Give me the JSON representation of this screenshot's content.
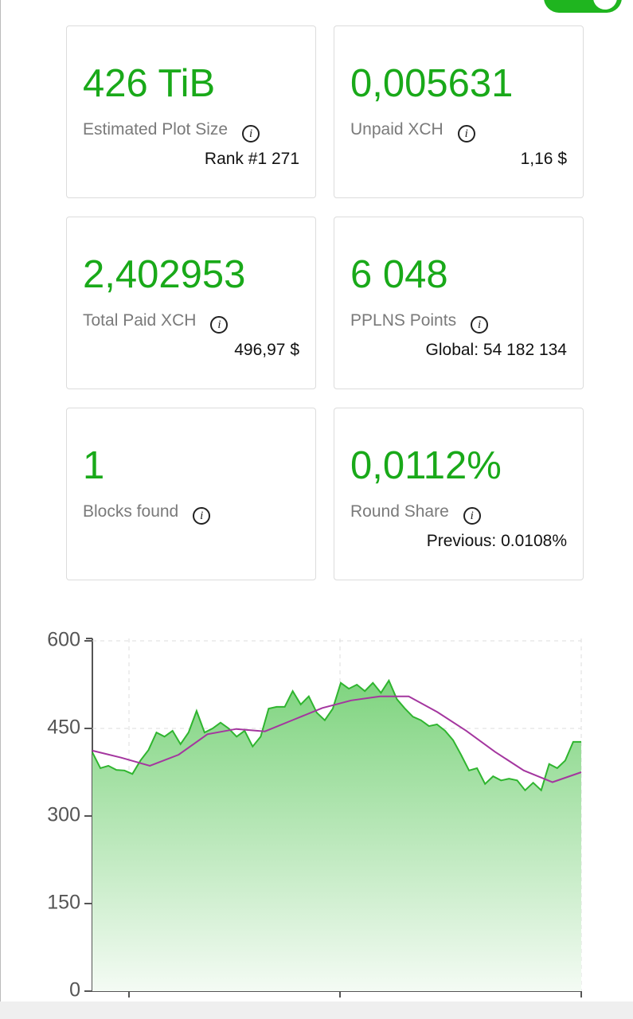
{
  "cards": [
    {
      "value": "426 TiB",
      "label": "Estimated Plot Size",
      "sub": "Rank #1 271"
    },
    {
      "value": "0,005631",
      "label": "Unpaid XCH",
      "sub": "1,16 $"
    },
    {
      "value": "2,402953",
      "label": "Total Paid XCH",
      "sub": "496,97 $"
    },
    {
      "value": "6 048",
      "label": "PPLNS Points",
      "sub": "Global: 54 182 134"
    },
    {
      "value": "1",
      "label": "Blocks found"
    },
    {
      "value": "0,0112%",
      "label": "Round Share",
      "sub": "Previous: 0.0108%"
    }
  ],
  "chart_data": {
    "type": "line",
    "ylim": [
      0,
      600
    ],
    "yticks": [
      0,
      150,
      300,
      450,
      600
    ],
    "grid": true,
    "series": [
      {
        "name": null,
        "color": "#2fb52f",
        "fill": true,
        "values": [
          409,
          382,
          386,
          379,
          378,
          372,
          395,
          413,
          443,
          436,
          446,
          423,
          443,
          480,
          443,
          450,
          460,
          450,
          436,
          446,
          419,
          436,
          484,
          487,
          487,
          514,
          491,
          505,
          477,
          464,
          484,
          528,
          518,
          525,
          514,
          528,
          511,
          532,
          500,
          484,
          470,
          464,
          454,
          457,
          446,
          430,
          405,
          378,
          382,
          355,
          368,
          361,
          364,
          361,
          344,
          357,
          344,
          389,
          382,
          395,
          427,
          427
        ]
      },
      {
        "name": null,
        "color": "#a4369f",
        "values": [
          412,
          400,
          386,
          405,
          440,
          449,
          445,
          465,
          485,
          498,
          505,
          505,
          478,
          446,
          410,
          378,
          358,
          375
        ]
      }
    ]
  }
}
